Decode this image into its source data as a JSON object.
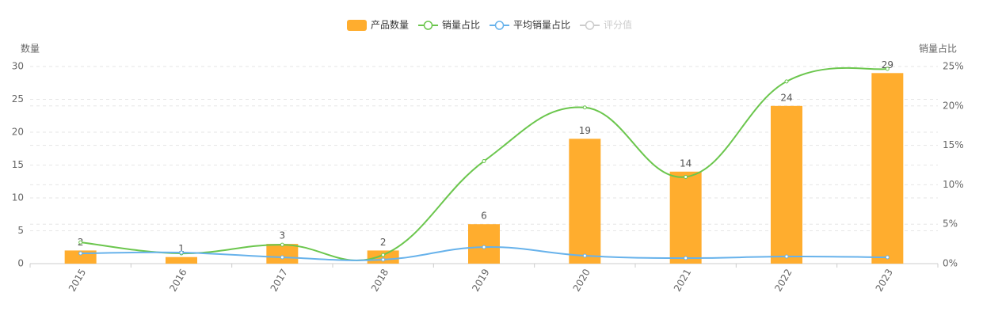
{
  "chart_data": {
    "type": "bar",
    "categories": [
      "2015",
      "2016",
      "2017",
      "2018",
      "2019",
      "2020",
      "2021",
      "2022",
      "2023"
    ],
    "y_label": "数量",
    "y2_label": "销量占比",
    "ylim": [
      0,
      30
    ],
    "yticks": [
      0,
      5,
      10,
      15,
      20,
      25,
      30
    ],
    "y2lim": [
      0,
      25
    ],
    "y2ticks": [
      {
        "value": 0,
        "label": "0%"
      },
      {
        "value": 5,
        "label": "5%"
      },
      {
        "value": 10,
        "label": "10%"
      },
      {
        "value": 15,
        "label": "15%"
      },
      {
        "value": 20,
        "label": "20%"
      },
      {
        "value": 25,
        "label": "25%"
      }
    ],
    "grid": true,
    "series": [
      {
        "name": "产品数量",
        "type": "bar",
        "color": "#ffad2e",
        "values": [
          2,
          1,
          3,
          2,
          6,
          19,
          14,
          24,
          29
        ]
      },
      {
        "name": "销量占比",
        "type": "line",
        "axis": "y2",
        "color": "#6bc64d",
        "values": [
          2.7,
          1.3,
          2.4,
          1.1,
          13.0,
          19.8,
          11.0,
          23.1,
          24.7
        ]
      },
      {
        "name": "平均销量占比",
        "type": "line",
        "axis": "y2",
        "color": "#67b2eb",
        "values": [
          1.3,
          1.4,
          0.8,
          0.5,
          2.1,
          1.0,
          0.7,
          0.9,
          0.8
        ]
      },
      {
        "name": "评分值",
        "type": "line",
        "axis": "y2",
        "color": "#cccccc",
        "values": [
          null,
          null,
          null,
          null,
          null,
          null,
          null,
          null,
          null
        ]
      }
    ]
  }
}
